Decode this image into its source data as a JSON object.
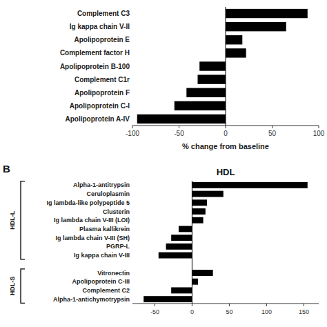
{
  "chart_data": [
    {
      "type": "bar",
      "orientation": "horizontal",
      "categories": [
        "Complement C3",
        "Ig kappa chain V-II",
        "Apolipoprotein E",
        "Complement factor H",
        "Apolipoprotein B-100",
        "Complement C1r",
        "Apolipoprotein F",
        "Apolipoprotein C-I",
        "Apolipoprotein A-IV"
      ],
      "values": [
        88,
        65,
        18,
        22,
        -28,
        -30,
        -42,
        -55,
        -95
      ],
      "color": "#000000",
      "xlim": [
        -100,
        100
      ],
      "xticks": [
        -100,
        -50,
        0,
        50,
        100
      ],
      "xlabel": "% change from baseline",
      "grid": false
    },
    {
      "type": "bar",
      "orientation": "horizontal",
      "title": "HDL",
      "categories": [
        "Alpha-1-antitrypsin",
        "Ceruloplasmin",
        "Ig lambda-like polypeptide 5",
        "Clusterin",
        "Ig lambda chain V-III (LOI)",
        "Plasma kallikrein",
        "Ig lambda chain V-III (SH)",
        "PGRP-L",
        "Ig kappa chain V-III",
        null,
        "Vitronectin",
        "Apolipoprotein C-III",
        "Complement C2",
        "Alpha-1-antichymotrypsin"
      ],
      "values": [
        155,
        42,
        20,
        18,
        15,
        -18,
        -28,
        -35,
        -45,
        null,
        28,
        8,
        -28,
        -65
      ],
      "color": "#000000",
      "xlim": [
        -80,
        170
      ],
      "xticks": [
        -50,
        0,
        50,
        100,
        150
      ],
      "grid": false,
      "annotations": [
        {
          "text": "B"
        },
        {
          "text": "HDL-L",
          "span": [
            "Alpha-1-antitrypsin",
            "Ig kappa chain V-III"
          ]
        },
        {
          "text": "HDL-S",
          "span": [
            "Vitronectin",
            "Alpha-1-antichymotrypsin"
          ]
        }
      ]
    }
  ]
}
